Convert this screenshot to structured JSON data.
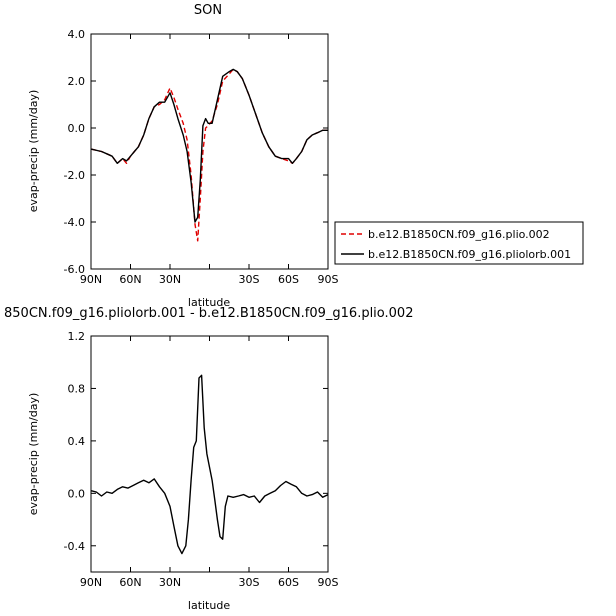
{
  "chart_data": [
    {
      "type": "line",
      "title": "SON",
      "xlabel": "latitude",
      "ylabel": "evap-precip (mm/day)",
      "xlim": [
        90,
        -90
      ],
      "ylim": [
        -6.0,
        4.0
      ],
      "xticks": [
        90,
        60,
        30,
        0,
        -30,
        -60,
        -90
      ],
      "xtick_labels": [
        "90N",
        "60N",
        "30N",
        "",
        "30S",
        "60S",
        "90S"
      ],
      "yticks": [
        -6,
        -4,
        -2,
        0,
        2,
        4
      ],
      "ytick_labels": [
        "-6.0",
        "-4.0",
        "-2.0",
        "0.0",
        "2.0",
        "4.0"
      ],
      "legend_position": "right",
      "series": [
        {
          "name": "b.e12.B1850CN.f09_g16.plio.002",
          "color": "#e00000",
          "style": "dashed",
          "x": [
            90,
            82,
            78,
            74,
            70,
            66,
            63,
            60,
            57,
            54,
            50,
            46,
            42,
            38,
            34,
            30,
            27,
            24,
            20,
            17,
            14,
            11,
            9,
            7,
            5,
            3,
            1,
            -2,
            -6,
            -10,
            -15,
            -18,
            -21,
            -25,
            -30,
            -35,
            -40,
            -45,
            -50,
            -55,
            -60,
            -63,
            -66,
            -70,
            -74,
            -78,
            -82,
            -86,
            -90
          ],
          "y": [
            -0.9,
            -1.0,
            -1.1,
            -1.2,
            -1.5,
            -1.3,
            -1.5,
            -1.2,
            -1.0,
            -0.8,
            -0.3,
            0.4,
            0.9,
            1.0,
            1.2,
            1.7,
            1.3,
            0.8,
            0.2,
            -0.5,
            -2.0,
            -4.1,
            -4.8,
            -3.0,
            -1.0,
            0.0,
            0.1,
            0.3,
            1.0,
            2.0,
            2.3,
            2.5,
            2.4,
            2.1,
            1.4,
            0.6,
            -0.2,
            -0.8,
            -1.2,
            -1.3,
            -1.4,
            -1.5,
            -1.3,
            -1.0,
            -0.5,
            -0.3,
            -0.2,
            -0.1,
            -0.1
          ]
        },
        {
          "name": "b.e12.B1850CN.f09_g16.pliolorb.001",
          "color": "#000000",
          "style": "solid",
          "x": [
            90,
            82,
            78,
            74,
            70,
            66,
            63,
            60,
            57,
            54,
            50,
            46,
            42,
            38,
            34,
            30,
            27,
            24,
            20,
            17,
            14,
            11,
            9,
            7,
            5,
            3,
            1,
            -2,
            -6,
            -10,
            -15,
            -18,
            -21,
            -25,
            -30,
            -35,
            -40,
            -45,
            -50,
            -55,
            -60,
            -63,
            -66,
            -70,
            -74,
            -78,
            -82,
            -86,
            -90
          ],
          "y": [
            -0.9,
            -1.0,
            -1.1,
            -1.2,
            -1.5,
            -1.3,
            -1.4,
            -1.2,
            -1.0,
            -0.8,
            -0.3,
            0.4,
            0.9,
            1.1,
            1.1,
            1.5,
            1.0,
            0.4,
            -0.3,
            -1.0,
            -2.3,
            -4.0,
            -3.8,
            -2.2,
            0.1,
            0.4,
            0.2,
            0.2,
            1.2,
            2.2,
            2.4,
            2.5,
            2.4,
            2.1,
            1.4,
            0.6,
            -0.2,
            -0.8,
            -1.2,
            -1.3,
            -1.3,
            -1.5,
            -1.3,
            -1.0,
            -0.5,
            -0.3,
            -0.2,
            -0.1,
            -0.1
          ]
        }
      ]
    },
    {
      "type": "line",
      "title": "850CN.f09_g16.pliolorb.001 - b.e12.B1850CN.f09_g16.plio.002",
      "xlabel": "latitude",
      "ylabel": "evap-precip (mm/day)",
      "xlim": [
        90,
        -90
      ],
      "ylim": [
        -0.6,
        1.2
      ],
      "xticks": [
        90,
        60,
        30,
        0,
        -30,
        -60,
        -90
      ],
      "xtick_labels": [
        "90N",
        "60N",
        "30N",
        "",
        "30S",
        "60S",
        "90S"
      ],
      "yticks": [
        -0.4,
        0.0,
        0.4,
        0.8,
        1.2
      ],
      "ytick_labels": [
        "-0.4",
        "0.0",
        "0.4",
        "0.8",
        "1.2"
      ],
      "series": [
        {
          "color": "#000000",
          "style": "solid",
          "x": [
            90,
            86,
            82,
            78,
            74,
            70,
            66,
            62,
            58,
            54,
            50,
            46,
            42,
            38,
            34,
            30,
            27,
            24,
            21,
            18,
            16,
            14,
            12,
            10,
            8,
            6,
            4,
            2,
            0,
            -2,
            -4,
            -6,
            -8,
            -10,
            -12,
            -14,
            -18,
            -22,
            -26,
            -30,
            -34,
            -38,
            -42,
            -46,
            -50,
            -54,
            -58,
            -62,
            -66,
            -70,
            -74,
            -78,
            -82,
            -86,
            -90
          ],
          "y": [
            0.02,
            0.01,
            -0.02,
            0.01,
            0.0,
            0.03,
            0.05,
            0.04,
            0.06,
            0.08,
            0.1,
            0.08,
            0.11,
            0.05,
            0.0,
            -0.1,
            -0.25,
            -0.4,
            -0.46,
            -0.4,
            -0.2,
            0.1,
            0.35,
            0.4,
            0.88,
            0.9,
            0.5,
            0.3,
            0.2,
            0.1,
            -0.05,
            -0.2,
            -0.33,
            -0.35,
            -0.1,
            -0.02,
            -0.03,
            -0.02,
            -0.01,
            -0.03,
            -0.02,
            -0.07,
            -0.02,
            0.0,
            0.02,
            0.06,
            0.09,
            0.07,
            0.05,
            0.0,
            -0.02,
            -0.01,
            0.01,
            -0.03,
            -0.01
          ]
        }
      ]
    }
  ]
}
